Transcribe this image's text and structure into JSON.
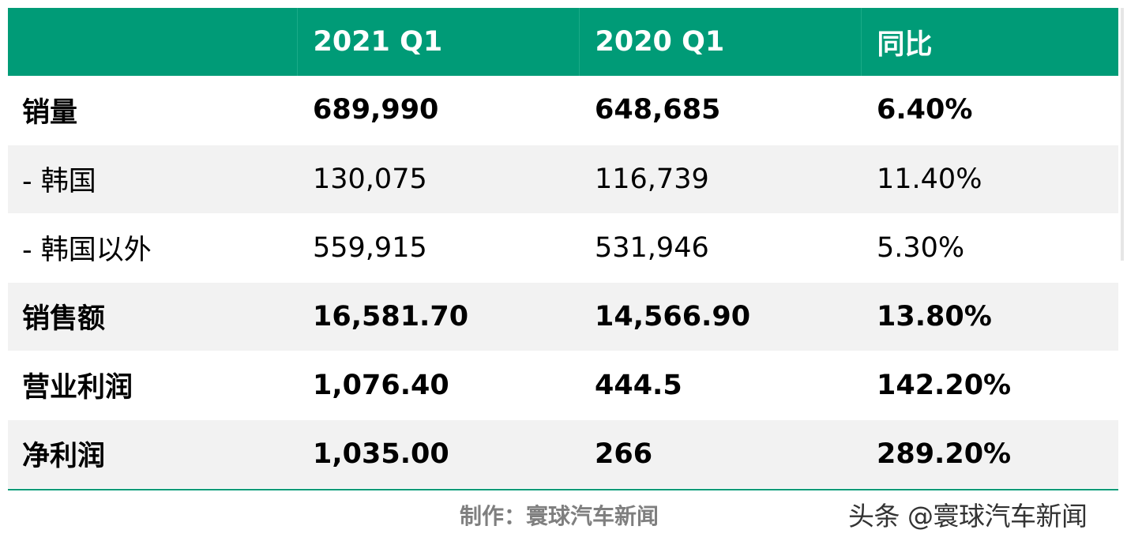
{
  "table": {
    "header": [
      "",
      "2021 Q1",
      "2020 Q1",
      "同比"
    ],
    "rows": [
      {
        "label": "销量",
        "v2021": "689,990",
        "v2020": "648,685",
        "yoy": "6.40%"
      },
      {
        "label": "- 韩国",
        "v2021": "130,075",
        "v2020": "116,739",
        "yoy": "11.40%"
      },
      {
        "label": "- 韩国以外",
        "v2021": "559,915",
        "v2020": "531,946",
        "yoy": "5.30%"
      },
      {
        "label": "销售额",
        "v2021": "16,581.70",
        "v2020": "14,566.90",
        "yoy": "13.80%"
      },
      {
        "label": "营业利润",
        "v2021": "1,076.40",
        "v2020": "444.5",
        "yoy": "142.20%"
      },
      {
        "label": "净利润",
        "v2021": "1,035.00",
        "v2020": "266",
        "yoy": "289.20%"
      }
    ]
  },
  "footer": {
    "credit": "制作：寰球汽车新闻",
    "watermark": "头条 @寰球汽车新闻"
  },
  "colors": {
    "header_bg": "#009b77",
    "row_alt_bg": "#f2f2f2"
  }
}
